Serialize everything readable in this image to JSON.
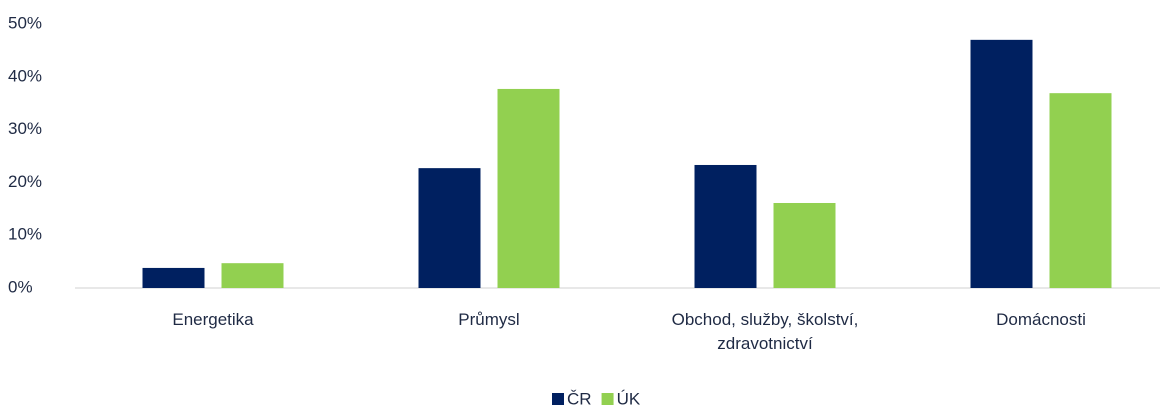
{
  "chart_data": {
    "type": "bar",
    "categories": [
      "Energetika",
      "Průmysl",
      "Obchod, služby, školství, zdravotnictví",
      "Domácnosti"
    ],
    "series": [
      {
        "name": "ČR",
        "color": "#002060",
        "values": [
          3.8,
          22.7,
          23.3,
          47
        ]
      },
      {
        "name": "ÚK",
        "color": "#92d050",
        "values": [
          4.7,
          37.7,
          16.1,
          36.9
        ]
      }
    ],
    "ylim": [
      0,
      50
    ],
    "yticks": [
      {
        "value": 0,
        "label": "0%"
      },
      {
        "value": 10,
        "label": "10%"
      },
      {
        "value": 20,
        "label": "20%"
      },
      {
        "value": 30,
        "label": "30%"
      },
      {
        "value": 40,
        "label": "40%"
      },
      {
        "value": 50,
        "label": "50%"
      }
    ],
    "grid": false,
    "legend": "bottom"
  }
}
